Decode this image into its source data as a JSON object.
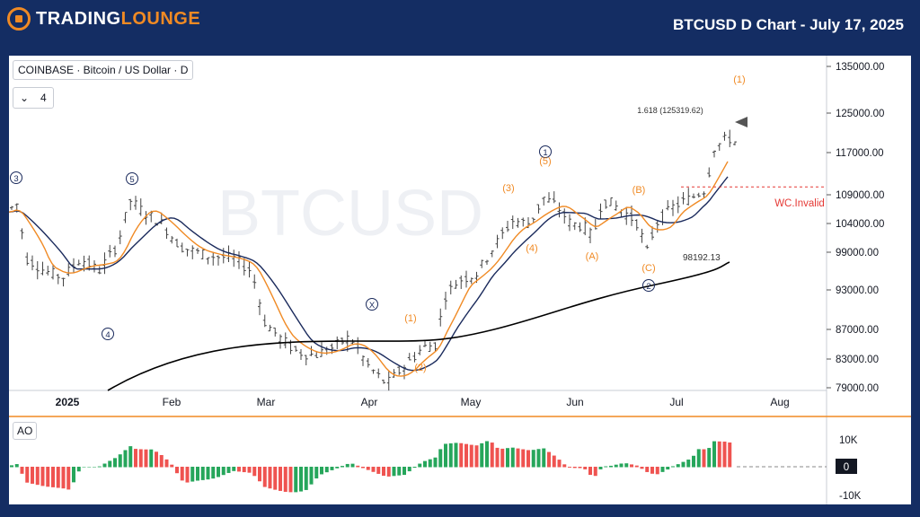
{
  "header": {
    "logo_text_1": "TRADING",
    "logo_text_2": "LOUNGE",
    "title": "BTCUSD D Chart - July 17, 2025"
  },
  "legend": {
    "symbol": "COINBASE · Bitcoin / US Dollar · D",
    "interval": "4",
    "ao_label": "AO"
  },
  "watermark": "BTCUSD",
  "colors": {
    "accent": "#f08a24",
    "header_bg": "#142d63",
    "ema_fast": "#f08a24",
    "ema_mid": "#1a2a5c",
    "sma_long": "#000000",
    "ao_up": "#26a65b",
    "ao_down": "#ef5350",
    "invalid": "#e53935"
  },
  "chart_data": {
    "type": "candlestick",
    "ylim": [
      78000,
      140000
    ],
    "y_ticks": [
      "135000.00",
      "125000.00",
      "117000.00",
      "109000.00",
      "104000.00",
      "99000.00",
      "93000.00",
      "87000.00",
      "83000.00",
      "79000.00"
    ],
    "x_ticks": [
      "2025",
      "Feb",
      "Mar",
      "Apr",
      "May",
      "Jun",
      "Jul",
      "Aug"
    ],
    "annotations": {
      "fib": "1.618 (125319.62)",
      "invalid": "WC.Invalid",
      "low_label": "98192.13",
      "waves_blue": [
        "3",
        "5",
        "4",
        "X",
        "1",
        "2"
      ],
      "waves_orange": [
        "(1)",
        "(2)",
        "(3)",
        "(4)",
        "(5)",
        "(A)",
        "(B)",
        "(C)",
        "(1)"
      ]
    },
    "ao": {
      "ticks": [
        "10K",
        "0",
        "-10K"
      ]
    }
  }
}
